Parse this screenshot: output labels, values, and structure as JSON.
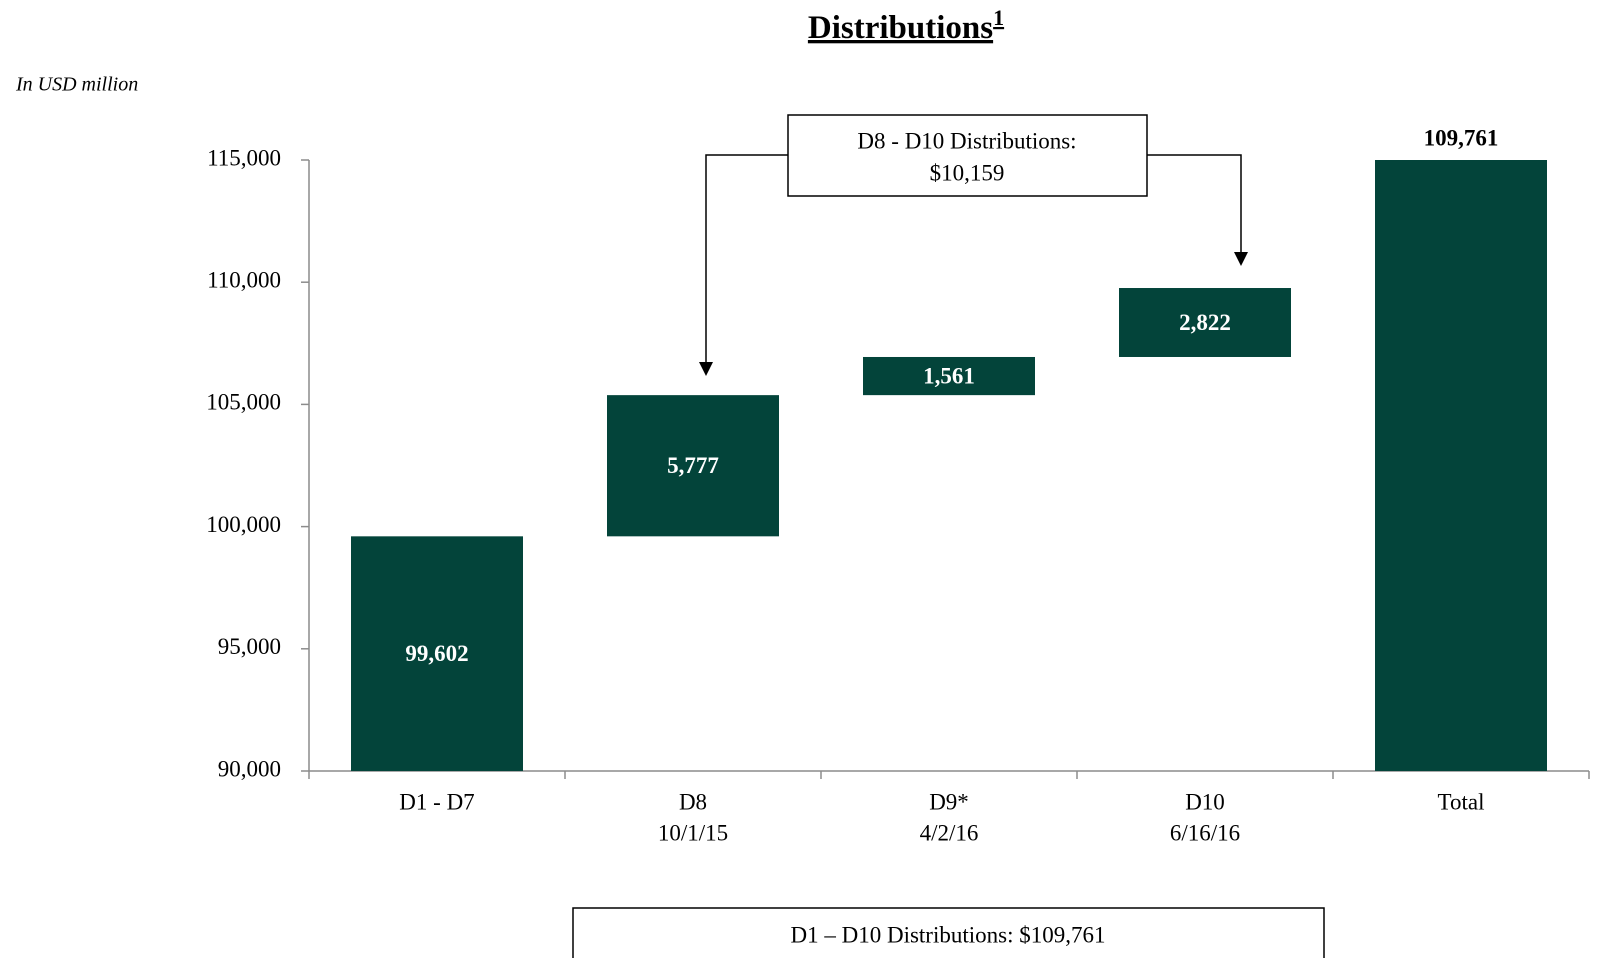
{
  "chart_data": {
    "type": "waterfall",
    "title": "Distributions",
    "title_footnote": "1",
    "subtitle": "In USD million",
    "categories": [
      [
        "D1 - D7"
      ],
      [
        "D8",
        "10/1/15"
      ],
      [
        "D9*",
        "4/2/16"
      ],
      [
        "D10",
        "6/16/16"
      ],
      [
        "Total"
      ]
    ],
    "values": [
      99602,
      5777,
      1561,
      2822,
      109761
    ],
    "value_labels": [
      "99,602",
      "5,777",
      "1,561",
      "2,822",
      "109,761"
    ],
    "is_total": [
      false,
      false,
      false,
      false,
      true
    ],
    "color": "#03443a",
    "ylim": [
      90000,
      115000
    ],
    "yticks": [
      {
        "value": 90000,
        "label": "90,000"
      },
      {
        "value": 95000,
        "label": "95,000"
      },
      {
        "value": 100000,
        "label": "100,000"
      },
      {
        "value": 105000,
        "label": "105,000"
      },
      {
        "value": 110000,
        "label": "110,000"
      },
      {
        "value": 115000,
        "label": "115,000"
      }
    ],
    "grid": false,
    "annotations": [
      [
        "D8 - D10 Distributions:",
        "$10,159"
      ],
      [
        "D1 – D10 Distributions: $109,761"
      ]
    ]
  }
}
